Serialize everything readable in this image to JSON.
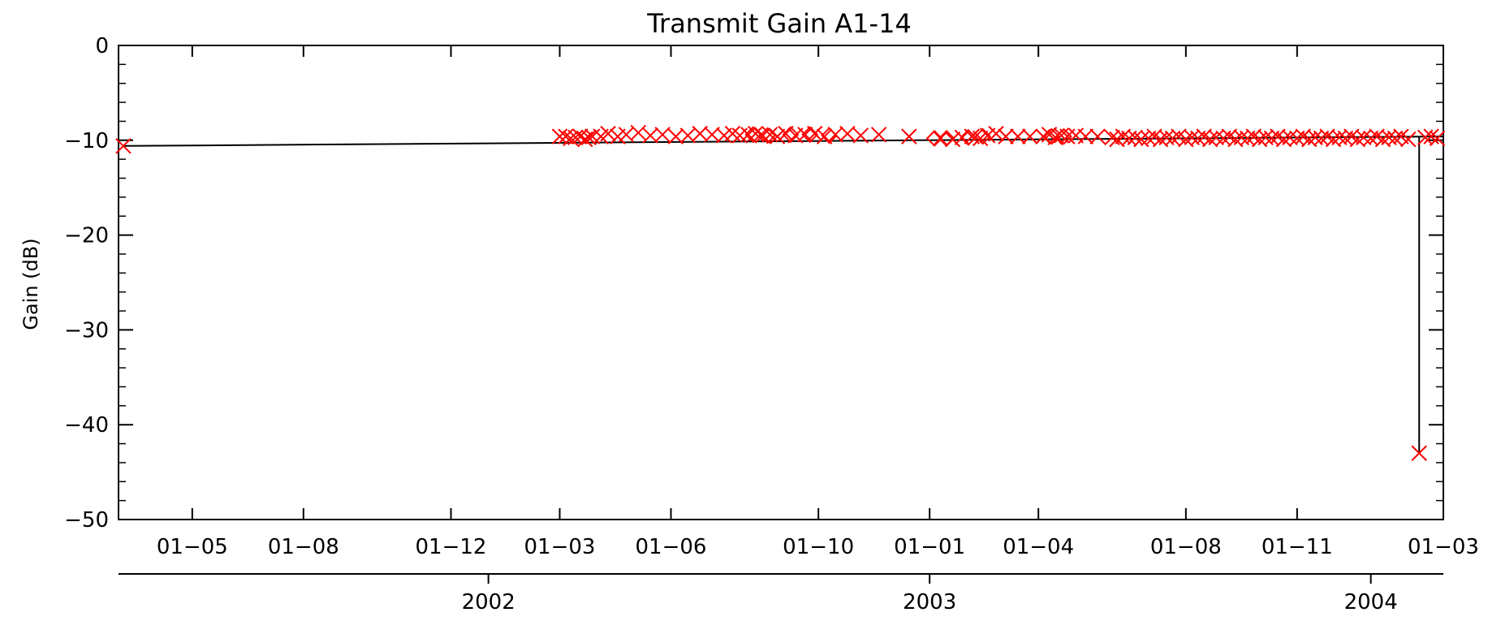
{
  "chart_data": {
    "type": "scatter",
    "title": "Transmit Gain A1-14",
    "ylabel": "Gain (dB)",
    "xlabel": "",
    "ylim": [
      -50,
      0
    ],
    "xlim": [
      "2001-03-01",
      "2004-03-01"
    ],
    "yticks": [
      0,
      -10,
      -20,
      -30,
      -40,
      -50
    ],
    "ytick_labels": [
      "0",
      "−10",
      "−20",
      "−30",
      "−40",
      "−50"
    ],
    "xticks": [
      {
        "date": "2001-05-01",
        "label": "01−05"
      },
      {
        "date": "2001-08-01",
        "label": "01−08"
      },
      {
        "date": "2001-12-01",
        "label": "01−12"
      },
      {
        "date": "2002-03-01",
        "label": "01−03"
      },
      {
        "date": "2002-06-01",
        "label": "01−06"
      },
      {
        "date": "2002-10-01",
        "label": "01−10"
      },
      {
        "date": "2003-01-01",
        "label": "01−01"
      },
      {
        "date": "2003-04-01",
        "label": "01−04"
      },
      {
        "date": "2003-08-01",
        "label": "01−08"
      },
      {
        "date": "2003-11-01",
        "label": "01−11"
      },
      {
        "date": "2004-03-01",
        "label": "01−03"
      }
    ],
    "year_ticks": [
      {
        "date": "2002-01-01",
        "label": "2002"
      },
      {
        "date": "2003-01-01",
        "label": "2003"
      },
      {
        "date": "2004-01-01",
        "label": "2004"
      }
    ],
    "marker_color": "#ff0000",
    "line_color": "#000000",
    "trend": {
      "x": [
        "2001-03-05",
        "2004-03-01"
      ],
      "y": [
        -10.6,
        -9.6
      ]
    },
    "drop": {
      "x": "2004-02-10",
      "y": -43
    },
    "series": [
      {
        "marker": "x",
        "x": [
          "2001-03-05",
          "2002-03-01",
          "2002-03-06",
          "2002-03-10",
          "2002-03-14",
          "2002-03-18",
          "2002-03-22",
          "2002-03-25",
          "2002-03-28",
          "2002-04-04",
          "2002-04-10",
          "2002-04-18",
          "2002-04-25",
          "2002-05-05",
          "2002-05-15",
          "2002-05-25",
          "2002-06-05",
          "2002-06-15",
          "2002-06-25",
          "2002-07-05",
          "2002-07-15",
          "2002-07-22",
          "2002-07-28",
          "2002-08-04",
          "2002-08-10",
          "2002-08-16",
          "2002-08-22",
          "2002-08-28",
          "2002-09-04",
          "2002-09-12",
          "2002-09-20",
          "2002-09-28",
          "2002-10-06",
          "2002-10-15",
          "2002-10-25",
          "2002-11-05",
          "2002-11-20",
          "2002-12-15",
          "2003-01-10",
          "2003-01-20",
          "2003-01-28",
          "2003-02-05",
          "2003-02-12",
          "2003-02-18",
          "2003-02-25",
          "2003-03-05",
          "2003-03-15",
          "2003-03-25",
          "2003-04-05",
          "2003-04-10",
          "2003-04-15",
          "2003-04-20",
          "2003-04-25",
          "2003-05-02",
          "2003-05-10",
          "2003-05-20",
          "2003-06-01",
          "2003-06-05",
          "2003-06-10",
          "2003-06-15",
          "2003-06-20",
          "2003-06-25",
          "2003-07-01",
          "2003-07-06",
          "2003-07-11",
          "2003-07-16",
          "2003-07-21",
          "2003-07-26",
          "2003-08-01",
          "2003-08-06",
          "2003-08-11",
          "2003-08-16",
          "2003-08-21",
          "2003-08-26",
          "2003-09-01",
          "2003-09-06",
          "2003-09-11",
          "2003-09-16",
          "2003-09-21",
          "2003-09-26",
          "2003-10-01",
          "2003-10-06",
          "2003-10-11",
          "2003-10-16",
          "2003-10-21",
          "2003-10-26",
          "2003-11-01",
          "2003-11-06",
          "2003-11-11",
          "2003-11-16",
          "2003-11-21",
          "2003-11-26",
          "2003-12-01",
          "2003-12-06",
          "2003-12-11",
          "2003-12-16",
          "2003-12-21",
          "2003-12-26",
          "2004-01-01",
          "2004-01-06",
          "2004-01-11",
          "2004-01-16",
          "2004-01-21",
          "2004-01-26",
          "2004-02-01",
          "2004-02-10",
          "2004-02-15",
          "2004-02-20",
          "2004-02-25"
        ],
        "y": [
          -10.6,
          -9.6,
          -9.6,
          -9.8,
          -9.7,
          -9.6,
          -9.9,
          -9.7,
          -9.6,
          -9.6,
          -9.3,
          -9.6,
          -9.4,
          -9.2,
          -9.5,
          -9.4,
          -9.6,
          -9.5,
          -9.3,
          -9.4,
          -9.5,
          -9.3,
          -9.5,
          -9.4,
          -9.3,
          -9.5,
          -9.4,
          -9.6,
          -9.3,
          -9.5,
          -9.4,
          -9.3,
          -9.6,
          -9.4,
          -9.3,
          -9.5,
          -9.4,
          -9.6,
          -9.8,
          -9.9,
          -9.7,
          -9.6,
          -9.8,
          -9.5,
          -9.3,
          -9.6,
          -9.6,
          -9.6,
          -9.6,
          -9.4,
          -9.7,
          -9.5,
          -9.6,
          -9.5,
          -9.6,
          -9.6,
          -9.7,
          -9.9,
          -9.6,
          -9.8,
          -9.7,
          -9.9,
          -9.8,
          -9.6,
          -9.9,
          -9.7,
          -9.8,
          -9.6,
          -9.9,
          -9.7,
          -9.8,
          -9.6,
          -9.9,
          -9.7,
          -9.8,
          -9.6,
          -9.9,
          -9.7,
          -9.8,
          -9.6,
          -9.9,
          -9.7,
          -9.8,
          -9.6,
          -9.9,
          -9.7,
          -9.8,
          -9.6,
          -9.9,
          -9.7,
          -9.8,
          -9.6,
          -9.9,
          -9.7,
          -9.8,
          -9.6,
          -9.9,
          -9.7,
          -9.8,
          -9.6,
          -9.9,
          -9.7,
          -9.8,
          -9.6,
          -9.9,
          -43,
          -9.7,
          -9.6,
          -9.8
        ]
      },
      {
        "marker": "diamond",
        "x": [
          "2002-08-08",
          "2002-08-20",
          "2002-09-08",
          "2002-09-24",
          "2002-10-10",
          "2003-01-05",
          "2003-01-15",
          "2003-02-02",
          "2003-02-14",
          "2003-04-12",
          "2003-04-22"
        ],
        "y": [
          -9.4,
          -9.5,
          -9.4,
          -9.4,
          -9.5,
          -9.8,
          -9.8,
          -9.7,
          -9.6,
          -9.6,
          -9.6
        ]
      }
    ]
  }
}
